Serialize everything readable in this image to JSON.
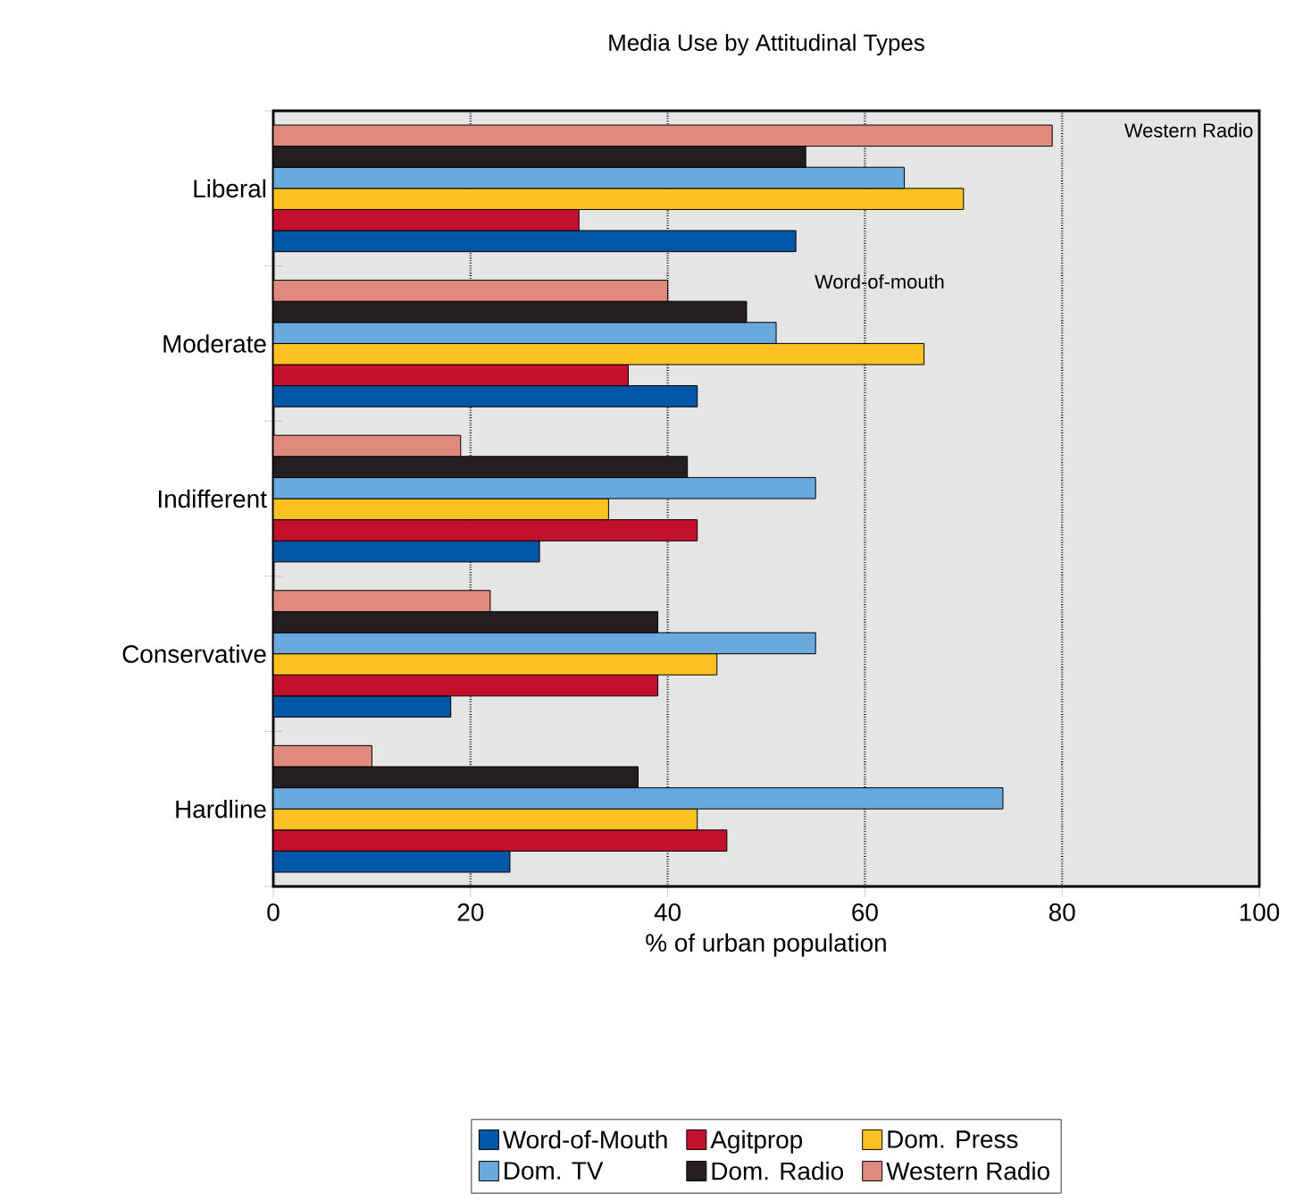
{
  "chart_data": {
    "type": "bar",
    "orientation": "horizontal",
    "title": "Media Use by Attitudinal Types",
    "xlabel": "% of urban population",
    "categories": [
      "Liberal",
      "Moderate",
      "Indifferent",
      "Conservative",
      "Hardline"
    ],
    "series": [
      {
        "name": "Word-of-Mouth",
        "color": "#0057a8",
        "values": [
          53,
          43,
          27,
          18,
          24
        ]
      },
      {
        "name": "Agitprop",
        "color": "#c3112d",
        "values": [
          31,
          36,
          43,
          39,
          46
        ]
      },
      {
        "name": "Dom. Press",
        "color": "#fdc222",
        "values": [
          70,
          66,
          34,
          45,
          43
        ]
      },
      {
        "name": "Dom. TV",
        "color": "#6aa9de",
        "values": [
          64,
          51,
          55,
          55,
          74
        ]
      },
      {
        "name": "Dom. Radio",
        "color": "#231f20",
        "values": [
          54,
          48,
          42,
          39,
          37
        ]
      },
      {
        "name": "Western Radio",
        "color": "#e08a7e",
        "values": [
          79,
          40,
          19,
          22,
          10
        ]
      }
    ],
    "annotations": [
      "Western Radio",
      "Word-of-mouth"
    ],
    "xlim": [
      0,
      100
    ],
    "xticks": [
      0,
      20,
      40,
      60,
      80,
      100
    ],
    "grid": "x",
    "legend": "bottom"
  }
}
